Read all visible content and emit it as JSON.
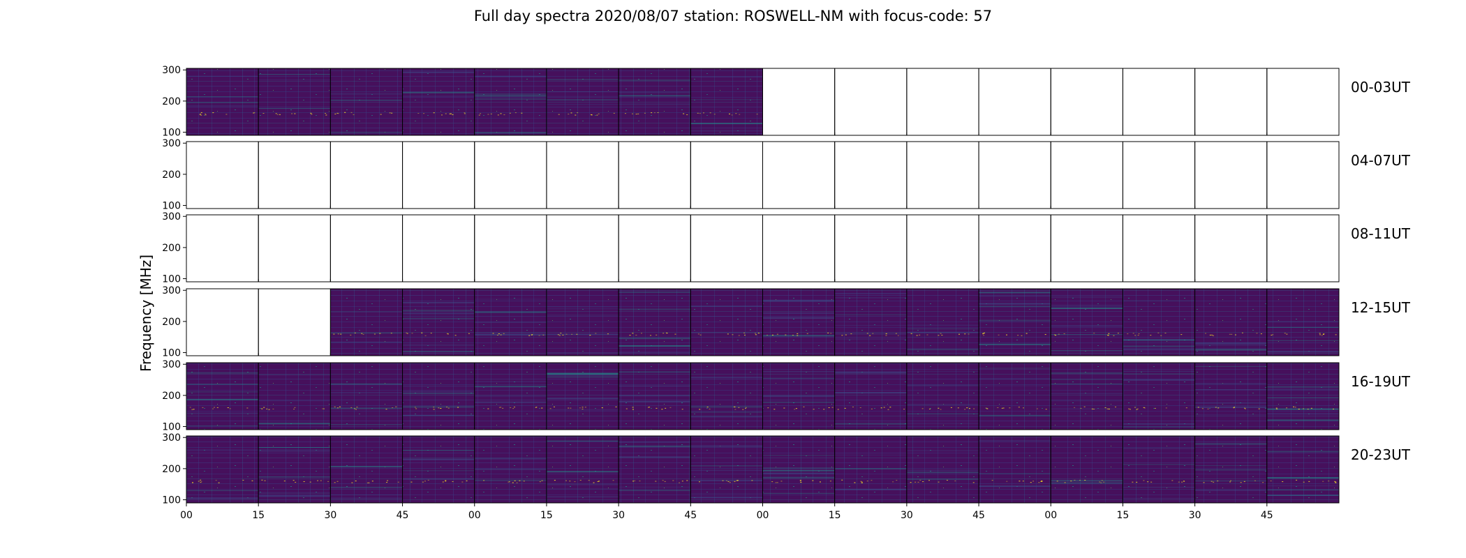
{
  "chart_data": {
    "type": "heatmap",
    "title": "Full day spectra 2020/08/07 station: ROSWELL-NM with focus-code: 57",
    "ylabel": "Frequency [MHz]",
    "xlabel": "",
    "ylim": [
      90,
      305
    ],
    "yticks": [
      100,
      200,
      300
    ],
    "xtick_labels": [
      "00",
      "15",
      "30",
      "45",
      "00",
      "15",
      "30",
      "45",
      "00",
      "15",
      "30",
      "45",
      "00",
      "15",
      "30",
      "45"
    ],
    "colormap": [
      "#440154",
      "#3b528b",
      "#21918c",
      "#5ec962",
      "#fde725"
    ],
    "rows": [
      {
        "label": "00-03UT",
        "present": [
          1,
          1,
          1,
          1,
          1,
          1,
          1,
          1,
          0,
          0,
          0,
          0,
          0,
          0,
          0,
          0
        ]
      },
      {
        "label": "04-07UT",
        "present": [
          0,
          0,
          0,
          0,
          0,
          0,
          0,
          0,
          0,
          0,
          0,
          0,
          0,
          0,
          0,
          0
        ]
      },
      {
        "label": "08-11UT",
        "present": [
          0,
          0,
          0,
          0,
          0,
          0,
          0,
          0,
          0,
          0,
          0,
          0,
          0,
          0,
          0,
          0
        ]
      },
      {
        "label": "12-15UT",
        "present": [
          0,
          0,
          1,
          1,
          1,
          1,
          1,
          1,
          1,
          1,
          1,
          1,
          1,
          1,
          1,
          1
        ]
      },
      {
        "label": "16-19UT",
        "present": [
          1,
          1,
          1,
          1,
          1,
          1,
          1,
          1,
          1,
          1,
          1,
          1,
          1,
          1,
          1,
          1
        ]
      },
      {
        "label": "20-23UT",
        "present": [
          1,
          1,
          1,
          1,
          1,
          1,
          1,
          1,
          1,
          1,
          1,
          1,
          1,
          1,
          1,
          1
        ]
      }
    ]
  }
}
